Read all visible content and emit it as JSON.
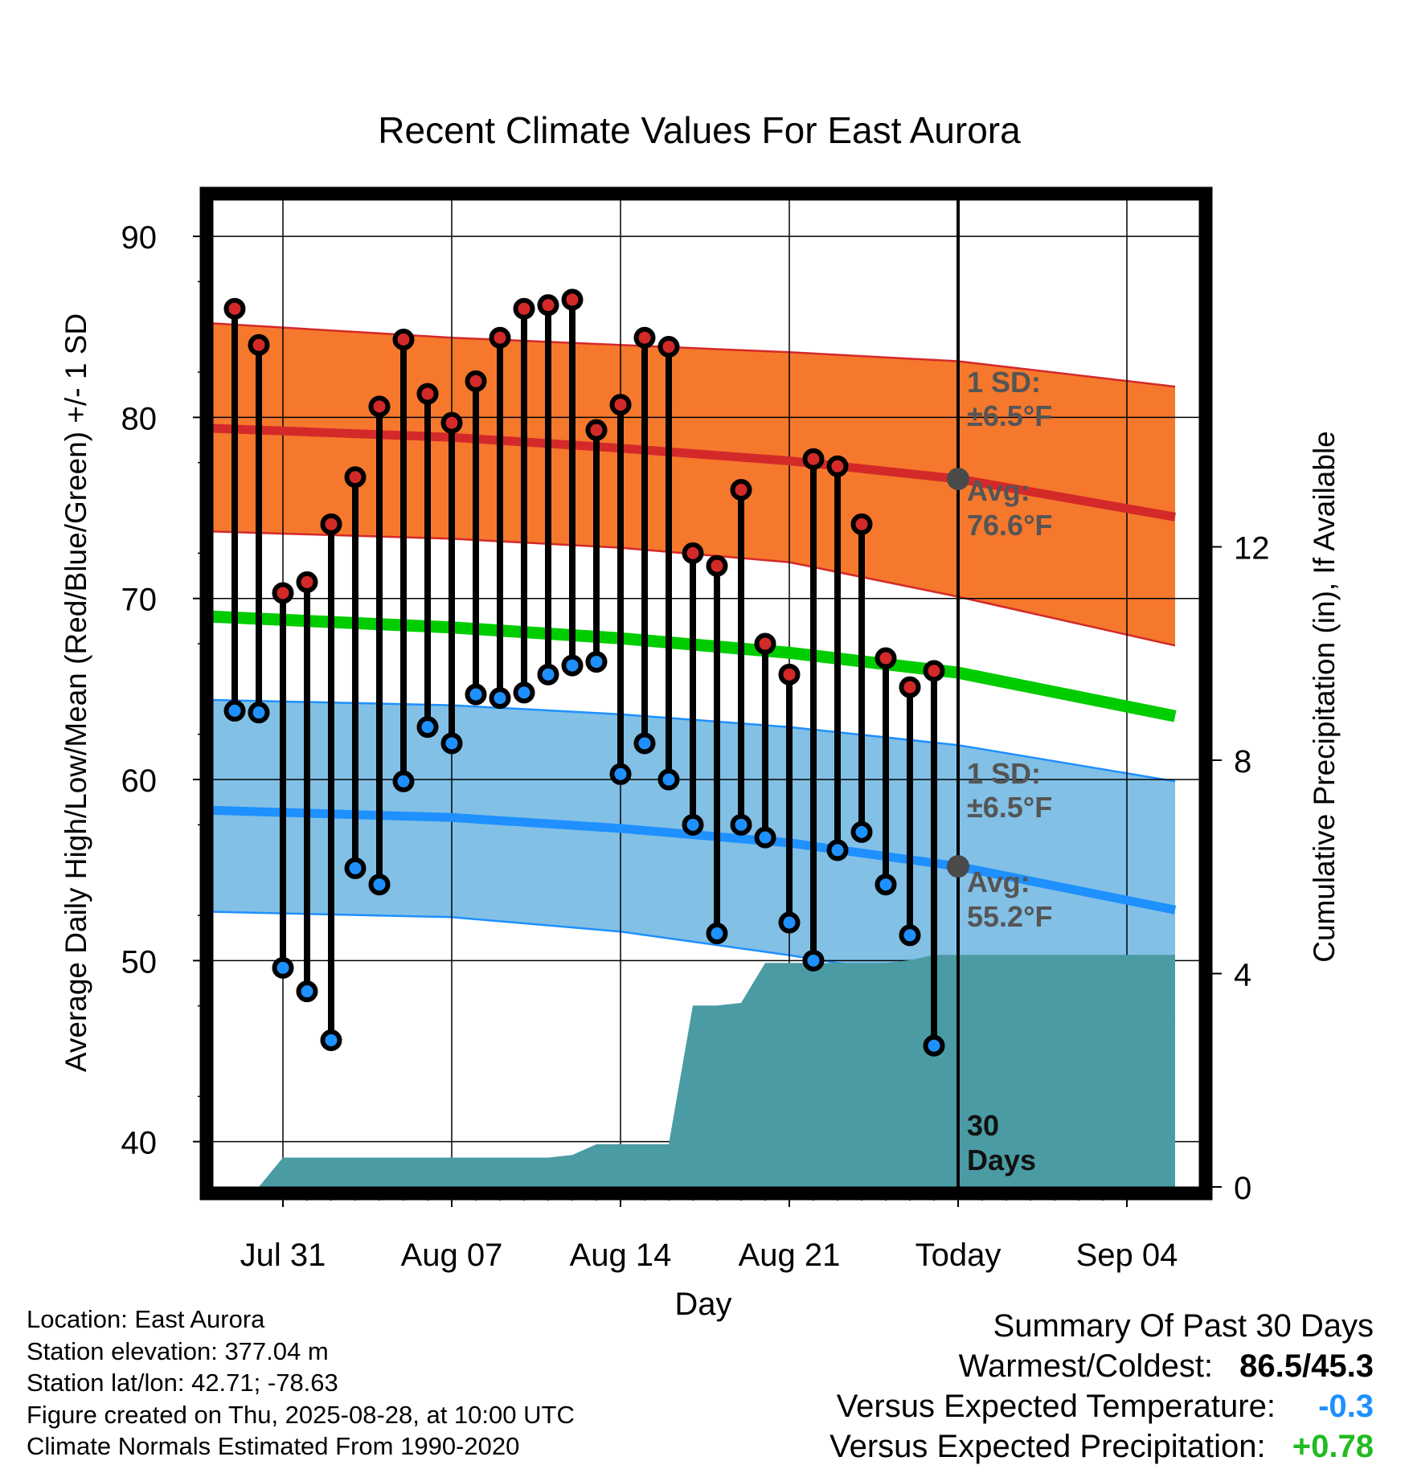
{
  "chart_data": {
    "type": "line",
    "title": "Recent Climate Values For East Aurora",
    "xlabel": "Day",
    "ylabel": "Average Daily High/Low/Mean (Red/Blue/Green) +/- 1 SD",
    "y2label": "Cumulative Precipitation (in), If Available",
    "x_tick_labels": [
      "Jul 31",
      "Aug 07",
      "Aug 14",
      "Aug 21",
      "Today",
      "Sep 04"
    ],
    "ylim": [
      37.5,
      92
    ],
    "y_ticks": [
      40,
      50,
      60,
      70,
      80,
      90
    ],
    "y2lim": [
      0,
      18.5
    ],
    "y2_ticks": [
      0,
      4,
      8,
      12
    ],
    "grid": true,
    "dates": [
      "Jul 29",
      "Jul 30",
      "Jul 31",
      "Aug 01",
      "Aug 02",
      "Aug 03",
      "Aug 04",
      "Aug 05",
      "Aug 06",
      "Aug 07",
      "Aug 08",
      "Aug 09",
      "Aug 10",
      "Aug 11",
      "Aug 12",
      "Aug 13",
      "Aug 14",
      "Aug 15",
      "Aug 16",
      "Aug 17",
      "Aug 18",
      "Aug 19",
      "Aug 20",
      "Aug 21",
      "Aug 22",
      "Aug 23",
      "Aug 24",
      "Aug 25",
      "Aug 26",
      "Aug 27"
    ],
    "series": [
      {
        "name": "High",
        "color": "#d42929",
        "values": [
          86.0,
          84.0,
          70.3,
          70.9,
          74.1,
          76.7,
          80.6,
          84.3,
          81.3,
          79.7,
          82.0,
          84.4,
          86.0,
          86.2,
          86.5,
          79.3,
          80.7,
          84.4,
          83.9,
          72.5,
          71.8,
          76.0,
          67.5,
          65.8,
          77.7,
          77.3,
          74.1,
          66.7,
          65.1,
          66.0
        ]
      },
      {
        "name": "Low",
        "color": "#1e90ff",
        "values": [
          63.8,
          63.7,
          49.6,
          48.3,
          45.6,
          55.1,
          54.2,
          59.9,
          62.9,
          62.0,
          64.7,
          64.5,
          64.8,
          65.8,
          66.3,
          66.5,
          60.3,
          62.0,
          60.0,
          57.5,
          51.5,
          57.5,
          56.8,
          52.1,
          50.0,
          56.1,
          57.1,
          54.2,
          51.4,
          45.3
        ]
      }
    ],
    "normals": {
      "x": [
        "Jul 28",
        "Aug 07",
        "Aug 14",
        "Aug 21",
        "Aug 28",
        "Sep 06"
      ],
      "high_avg": [
        79.4,
        78.9,
        78.3,
        77.6,
        76.6,
        74.5
      ],
      "high_plus": [
        85.2,
        84.4,
        84.0,
        83.6,
        83.1,
        81.7
      ],
      "high_minus": [
        73.7,
        73.3,
        72.8,
        72.0,
        70.1,
        67.4
      ],
      "mean_avg": [
        69.0,
        68.4,
        67.8,
        67.0,
        65.9,
        63.5
      ],
      "low_avg": [
        58.3,
        57.9,
        57.3,
        56.5,
        55.2,
        52.8
      ],
      "low_plus": [
        64.4,
        64.1,
        63.6,
        62.9,
        61.9,
        59.9
      ],
      "low_minus": [
        52.7,
        52.4,
        51.6,
        50.3,
        48.8,
        46.6
      ]
    },
    "precip_cumulative": {
      "x": [
        "Jul 30",
        "Jul 31",
        "Aug 08",
        "Aug 11",
        "Aug 12",
        "Aug 13",
        "Aug 16",
        "Aug 17",
        "Aug 18",
        "Aug 19",
        "Aug 20",
        "Aug 25",
        "Aug 26",
        "Aug 27",
        "Sep 06"
      ],
      "values": [
        0.0,
        0.55,
        0.55,
        0.55,
        0.6,
        0.8,
        0.8,
        3.4,
        3.4,
        3.45,
        4.2,
        4.2,
        4.25,
        4.35,
        4.35
      ]
    },
    "today": "Aug 28",
    "annotations": {
      "high_sd_title": "1 SD:",
      "high_sd_value": "±6.5°F",
      "high_avg_title": "Avg:",
      "high_avg_value": "76.6°F",
      "low_sd_title": "1 SD:",
      "low_sd_value": "±6.5°F",
      "low_avg_title": "Avg:",
      "low_avg_value": "55.2°F",
      "days_number": "30",
      "days_word": "Days"
    },
    "colors": {
      "high_band": "#f5782d",
      "high_line": "#d42929",
      "mean_line": "#00cc00",
      "low_band": "#82c0e6",
      "low_line": "#1e90ff",
      "precip": "#4a9ba4",
      "annotation_text": "#555555"
    }
  },
  "footer": {
    "location": "Location: East Aurora",
    "elevation": "Station elevation: 377.04 m",
    "latlon": "Station lat/lon: 42.71; -78.63",
    "created": "Figure created on Thu, 2025-08-28, at 10:00 UTC",
    "normals": "Climate Normals Estimated From 1990-2020"
  },
  "summary": {
    "title": "Summary Of Past 30 Days",
    "warm_label": "Warmest/Coldest:",
    "warm_value": "86.5/45.3",
    "temp_label": "Versus Expected Temperature:",
    "temp_value": "-0.3",
    "temp_color": "#1e90ff",
    "precip_label": "Versus Expected Precipitation:",
    "precip_value": "+0.78",
    "precip_color": "#22bb22"
  }
}
